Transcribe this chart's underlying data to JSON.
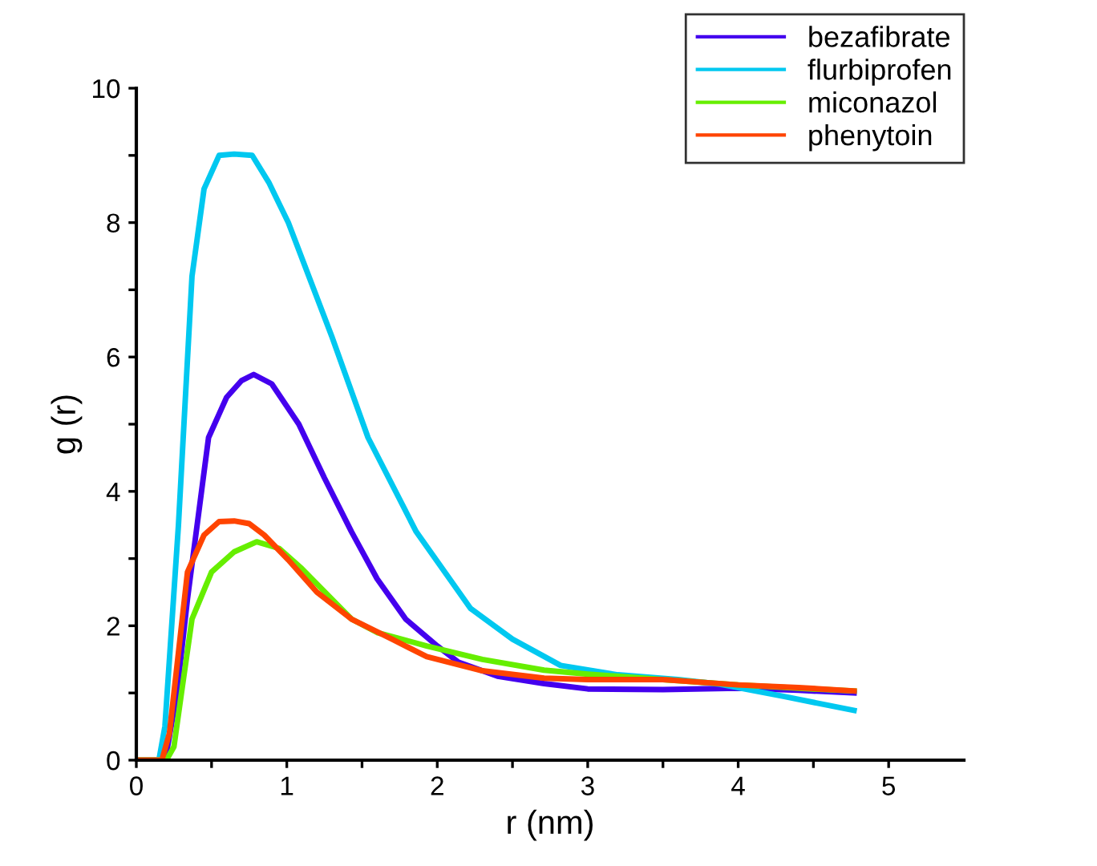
{
  "chart_data": {
    "type": "line",
    "xlabel": "r (nm)",
    "ylabel": "g (r)",
    "xlim": [
      0,
      5.5
    ],
    "ylim": [
      0,
      10
    ],
    "xticks": [
      0,
      {
        "value": 0.5,
        "label": null
      },
      1,
      {
        "value": 1.5,
        "label": null
      },
      2,
      {
        "value": 2.5,
        "label": null
      },
      3,
      {
        "value": 3.5,
        "label": null
      },
      4,
      {
        "value": 4.5,
        "label": null
      },
      5
    ],
    "yticks": [
      0,
      {
        "value": 1,
        "label": null
      },
      2,
      {
        "value": 3,
        "label": null
      },
      4,
      {
        "value": 5,
        "label": null
      },
      6,
      {
        "value": 7,
        "label": null
      },
      8,
      {
        "value": 9,
        "label": null
      },
      10
    ],
    "grid": false,
    "legend": "top right",
    "marker": "none",
    "line_style": "solid",
    "series": [
      {
        "name": "bezafibrate",
        "color": "#4400ee",
        "x": [
          0,
          0.15,
          0.2,
          0.27,
          0.34,
          0.48,
          0.6,
          0.7,
          0.78,
          0.9,
          1.08,
          1.25,
          1.43,
          1.6,
          1.79,
          2.0,
          2.14,
          2.4,
          2.71,
          3.0,
          3.5,
          4.0,
          4.4,
          4.77
        ],
        "values": [
          0,
          0,
          0.1,
          1.0,
          2.4,
          4.8,
          5.4,
          5.65,
          5.74,
          5.6,
          5.0,
          4.2,
          3.4,
          2.7,
          2.1,
          1.7,
          1.46,
          1.25,
          1.14,
          1.06,
          1.05,
          1.07,
          1.04,
          1.0
        ]
      },
      {
        "name": "flurbiprofen",
        "color": "#00c8f0",
        "x": [
          0,
          0.15,
          0.19,
          0.28,
          0.37,
          0.45,
          0.55,
          0.65,
          0.77,
          0.88,
          1.01,
          1.3,
          1.54,
          1.86,
          2.22,
          2.5,
          2.82,
          3.2,
          3.6,
          3.88,
          4.3,
          4.77
        ],
        "values": [
          0,
          0,
          0.5,
          3.5,
          7.2,
          8.5,
          9.0,
          9.02,
          9.0,
          8.6,
          8.0,
          6.3,
          4.8,
          3.4,
          2.26,
          1.8,
          1.41,
          1.27,
          1.2,
          1.13,
          0.95,
          0.74
        ]
      },
      {
        "name": "miconazol",
        "color": "#66ee00",
        "x": [
          0,
          0.2,
          0.25,
          0.3,
          0.37,
          0.5,
          0.65,
          0.8,
          0.95,
          1.1,
          1.43,
          1.6,
          1.93,
          2.3,
          2.71,
          3.0,
          3.5,
          4.0,
          4.4,
          4.77
        ],
        "values": [
          0,
          0,
          0.2,
          1.0,
          2.1,
          2.8,
          3.1,
          3.25,
          3.15,
          2.85,
          2.1,
          1.9,
          1.7,
          1.5,
          1.34,
          1.28,
          1.2,
          1.12,
          1.07,
          1.03
        ]
      },
      {
        "name": "phenytoin",
        "color": "#ff4400",
        "x": [
          0,
          0.17,
          0.22,
          0.28,
          0.34,
          0.45,
          0.55,
          0.65,
          0.75,
          0.85,
          1.01,
          1.2,
          1.43,
          1.7,
          1.93,
          2.3,
          2.71,
          3.0,
          3.5,
          4.0,
          4.4,
          4.77
        ],
        "values": [
          0,
          0,
          0.4,
          1.6,
          2.8,
          3.35,
          3.55,
          3.56,
          3.52,
          3.35,
          2.98,
          2.5,
          2.1,
          1.8,
          1.54,
          1.33,
          1.22,
          1.2,
          1.2,
          1.12,
          1.08,
          1.03
        ]
      }
    ]
  }
}
